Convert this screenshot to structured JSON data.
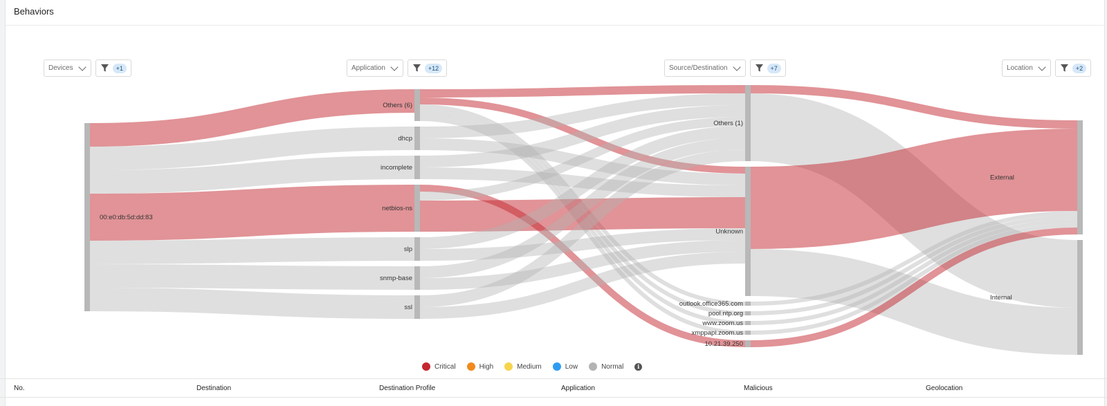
{
  "page": {
    "title": "Behaviors"
  },
  "controls": [
    {
      "label": "Devices",
      "filter_count": "+1"
    },
    {
      "label": "Application",
      "filter_count": "+12"
    },
    {
      "label": "Source/Destination",
      "filter_count": "+7"
    },
    {
      "label": "Location",
      "filter_count": "+2"
    }
  ],
  "legend": {
    "items": [
      {
        "label": "Critical",
        "color": "#c4272f"
      },
      {
        "label": "High",
        "color": "#f08a1c"
      },
      {
        "label": "Medium",
        "color": "#f6d54c"
      },
      {
        "label": "Low",
        "color": "#2f9cf3"
      },
      {
        "label": "Normal",
        "color": "#b3b3b3"
      }
    ],
    "info_icon": "info-icon"
  },
  "table": {
    "columns": [
      "No.",
      "Destination",
      "Destination Profile",
      "Application",
      "Malicious",
      "Geolocation"
    ]
  },
  "chart_data": {
    "type": "sankey",
    "title": "Behaviors",
    "stages": [
      "Devices",
      "Application",
      "Source/Destination",
      "Location"
    ],
    "severity_colors": {
      "critical": "#c4272f",
      "normal": "#b3b3b3"
    },
    "nodes": [
      {
        "id": "dev",
        "label": "00:e0:db:5d:dd:83",
        "stage": 0
      },
      {
        "id": "others6",
        "label": "Others (6)",
        "stage": 1
      },
      {
        "id": "dhcp",
        "label": "dhcp",
        "stage": 1
      },
      {
        "id": "incomplete",
        "label": "incomplete",
        "stage": 1
      },
      {
        "id": "netbios",
        "label": "netbios-ns",
        "stage": 1
      },
      {
        "id": "slp",
        "label": "slp",
        "stage": 1
      },
      {
        "id": "snmp",
        "label": "snmp-base",
        "stage": 1
      },
      {
        "id": "ssl",
        "label": "ssl",
        "stage": 1
      },
      {
        "id": "others1",
        "label": "Others (1)",
        "stage": 2
      },
      {
        "id": "unknown",
        "label": "Unknown",
        "stage": 2
      },
      {
        "id": "outlook",
        "label": "outlook.office365.com",
        "stage": 2
      },
      {
        "id": "ntp",
        "label": "pool.ntp.org",
        "stage": 2
      },
      {
        "id": "zoom",
        "label": "www.zoom.us",
        "stage": 2
      },
      {
        "id": "xmpp",
        "label": "xmppapi.zoom.us",
        "stage": 2
      },
      {
        "id": "ip",
        "label": "10.21.39.250",
        "stage": 2
      },
      {
        "id": "external",
        "label": "External",
        "stage": 3
      },
      {
        "id": "internal",
        "label": "Internal",
        "stage": 3
      }
    ],
    "links": [
      {
        "source": "dev",
        "target": "others6",
        "value": 34,
        "severity": "critical"
      },
      {
        "source": "dev",
        "target": "dhcp",
        "value": 34,
        "severity": "normal"
      },
      {
        "source": "dev",
        "target": "incomplete",
        "value": 34,
        "severity": "normal"
      },
      {
        "source": "dev",
        "target": "netbios",
        "value": 68,
        "severity": "critical"
      },
      {
        "source": "dev",
        "target": "slp",
        "value": 34,
        "severity": "normal"
      },
      {
        "source": "dev",
        "target": "snmp",
        "value": 34,
        "severity": "normal"
      },
      {
        "source": "dev",
        "target": "ssl",
        "value": 34,
        "severity": "normal"
      },
      {
        "source": "others6",
        "target": "others1",
        "value": 12,
        "severity": "critical"
      },
      {
        "source": "others6",
        "target": "unknown",
        "value": 10,
        "severity": "critical"
      },
      {
        "source": "others6",
        "target": "outlook",
        "value": 6,
        "severity": "normal"
      },
      {
        "source": "others6",
        "target": "ntp",
        "value": 6,
        "severity": "normal"
      },
      {
        "source": "others6",
        "target": "zoom",
        "value": 6,
        "severity": "normal"
      },
      {
        "source": "others6",
        "target": "xmpp",
        "value": 6,
        "severity": "normal"
      },
      {
        "source": "dhcp",
        "target": "others1",
        "value": 17,
        "severity": "normal"
      },
      {
        "source": "dhcp",
        "target": "unknown",
        "value": 17,
        "severity": "normal"
      },
      {
        "source": "incomplete",
        "target": "others1",
        "value": 17,
        "severity": "normal"
      },
      {
        "source": "incomplete",
        "target": "unknown",
        "value": 17,
        "severity": "normal"
      },
      {
        "source": "netbios",
        "target": "ip",
        "value": 10,
        "severity": "critical"
      },
      {
        "source": "netbios",
        "target": "others1",
        "value": 13,
        "severity": "normal"
      },
      {
        "source": "netbios",
        "target": "unknown",
        "value": 45,
        "severity": "critical"
      },
      {
        "source": "slp",
        "target": "others1",
        "value": 17,
        "severity": "normal"
      },
      {
        "source": "slp",
        "target": "unknown",
        "value": 17,
        "severity": "normal"
      },
      {
        "source": "snmp",
        "target": "others1",
        "value": 17,
        "severity": "normal"
      },
      {
        "source": "snmp",
        "target": "unknown",
        "value": 17,
        "severity": "normal"
      },
      {
        "source": "ssl",
        "target": "others1",
        "value": 17,
        "severity": "normal"
      },
      {
        "source": "ssl",
        "target": "unknown",
        "value": 17,
        "severity": "normal"
      },
      {
        "source": "others1",
        "target": "external",
        "value": 12,
        "severity": "critical"
      },
      {
        "source": "others1",
        "target": "internal",
        "value": 98,
        "severity": "normal"
      },
      {
        "source": "unknown",
        "target": "external",
        "value": 119,
        "severity": "critical"
      },
      {
        "source": "unknown",
        "target": "internal",
        "value": 68,
        "severity": "normal"
      },
      {
        "source": "outlook",
        "target": "external",
        "value": 6,
        "severity": "normal"
      },
      {
        "source": "ntp",
        "target": "external",
        "value": 6,
        "severity": "normal"
      },
      {
        "source": "zoom",
        "target": "external",
        "value": 6,
        "severity": "normal"
      },
      {
        "source": "xmpp",
        "target": "external",
        "value": 6,
        "severity": "normal"
      },
      {
        "source": "ip",
        "target": "external",
        "value": 10,
        "severity": "critical"
      }
    ]
  }
}
